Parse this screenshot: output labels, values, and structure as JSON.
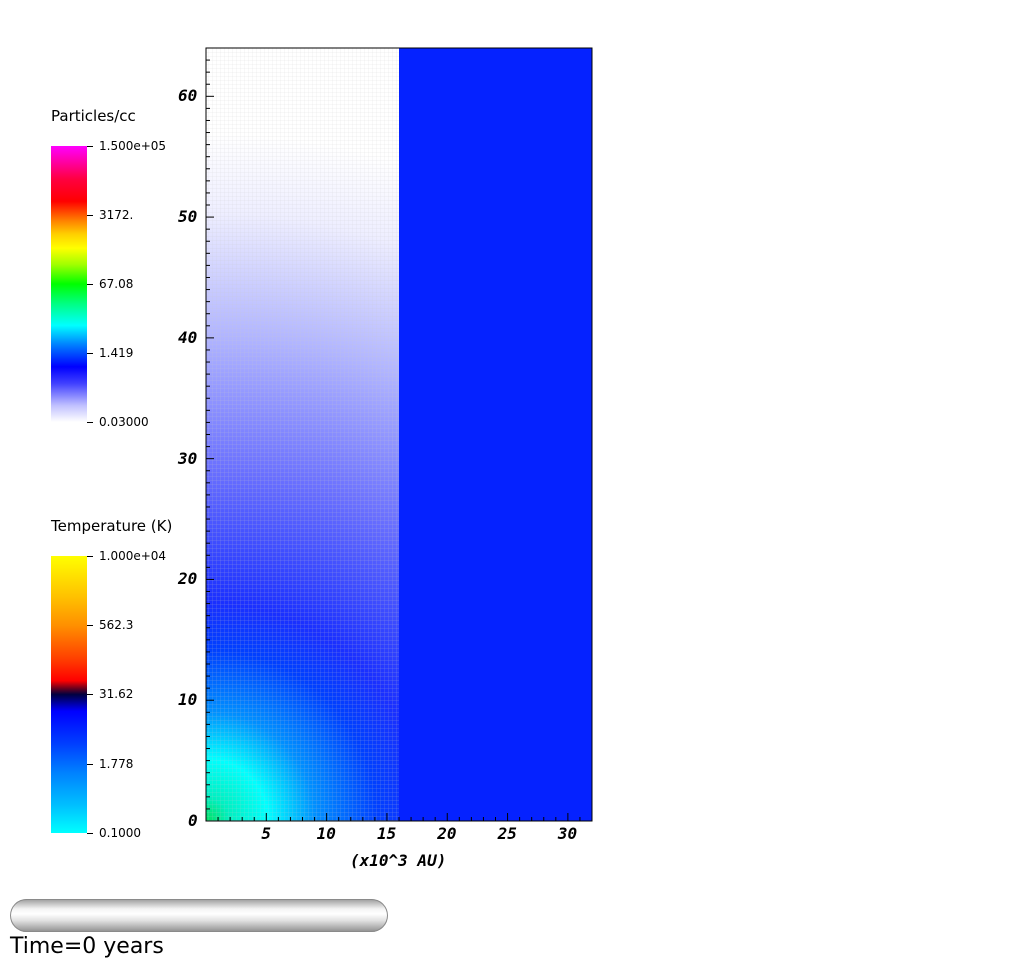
{
  "chart_data": {
    "type": "heatmap",
    "xlabel": "(x10^3 AU)",
    "ylabel": "",
    "xlim": [
      0,
      32
    ],
    "ylim": [
      0,
      64
    ],
    "x_ticks": [
      5,
      10,
      15,
      20,
      25,
      30
    ],
    "y_ticks": [
      0,
      10,
      20,
      30,
      40,
      50,
      60
    ],
    "x_tick_labels": [
      "5",
      "10",
      "15",
      "20",
      "25",
      "30"
    ],
    "y_tick_labels": [
      "0",
      "10",
      "20",
      "30",
      "40",
      "50",
      "60"
    ],
    "panel_split_x": 16,
    "left_panel": {
      "field": "Particles/cc",
      "colors": [
        "#ffffff",
        "#0020ff",
        "#00ffff",
        "#00ff00"
      ]
    },
    "right_panel": {
      "field": "Temperature (K)",
      "fill_color": "#0522ff"
    },
    "colorbars": [
      {
        "title": "Particles/cc",
        "labels": [
          "1.500e+05",
          "3172.",
          "67.08",
          "1.419",
          "0.03000"
        ],
        "colors": [
          "#ff00ff",
          "#ff0000",
          "#ffa000",
          "#ffff00",
          "#00ff00",
          "#00ffff",
          "#0060ff",
          "#0000ff",
          "#ffffff"
        ]
      },
      {
        "title": "Temperature (K)",
        "labels": [
          "1.000e+04",
          "562.3",
          "31.62",
          "1.778",
          "0.1000"
        ],
        "colors": [
          "#ffff00",
          "#ff9000",
          "#ff0000",
          "#000040",
          "#0000ff",
          "#0080ff",
          "#00ffff"
        ]
      }
    ]
  },
  "time_label": "Time=0 years"
}
